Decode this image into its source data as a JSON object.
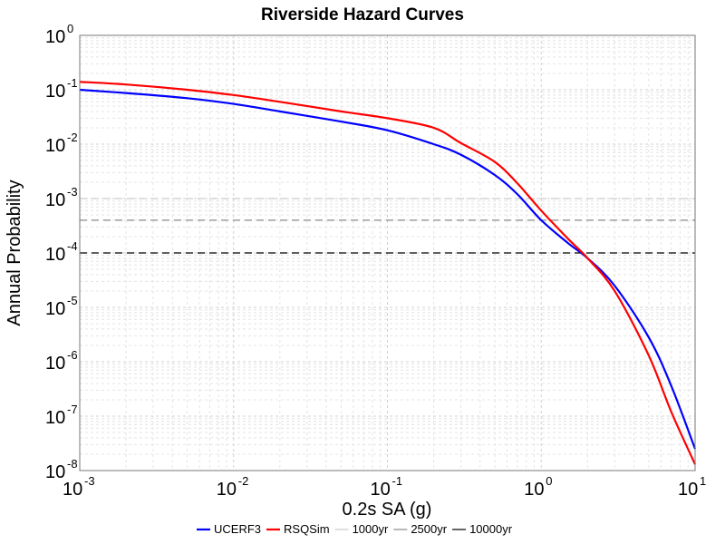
{
  "chart_data": {
    "type": "line",
    "title": "Riverside Hazard Curves",
    "xlabel": "0.2s SA (g)",
    "ylabel": "Annual Probability",
    "xscale": "log",
    "yscale": "log",
    "xlim": [
      0.001,
      10
    ],
    "ylim": [
      1e-08,
      1
    ],
    "grid": true,
    "legend_position": "bottom",
    "x_ticks": [
      {
        "base": "10",
        "exp": "-3"
      },
      {
        "base": "10",
        "exp": "-2"
      },
      {
        "base": "10",
        "exp": "-1"
      },
      {
        "base": "10",
        "exp": "0"
      },
      {
        "base": "10",
        "exp": "1"
      }
    ],
    "y_ticks": [
      {
        "base": "10",
        "exp": "0"
      },
      {
        "base": "10",
        "exp": "-1"
      },
      {
        "base": "10",
        "exp": "-2"
      },
      {
        "base": "10",
        "exp": "-3"
      },
      {
        "base": "10",
        "exp": "-4"
      },
      {
        "base": "10",
        "exp": "-5"
      },
      {
        "base": "10",
        "exp": "-6"
      },
      {
        "base": "10",
        "exp": "-7"
      },
      {
        "base": "10",
        "exp": "-8"
      }
    ],
    "series": [
      {
        "name": "UCERF3",
        "color": "#0000ff",
        "x": [
          0.001,
          0.002,
          0.005,
          0.01,
          0.02,
          0.05,
          0.1,
          0.2,
          0.3,
          0.5,
          0.7,
          1.0,
          1.5,
          2.0,
          3.0,
          5.0,
          7.0,
          10.0
        ],
        "y": [
          0.1,
          0.087,
          0.07,
          0.055,
          0.04,
          0.026,
          0.018,
          0.01,
          0.0064,
          0.0027,
          0.0012,
          0.0004,
          0.00015,
          8e-05,
          2.5e-05,
          2.8e-06,
          3.6e-07,
          2.5e-08
        ]
      },
      {
        "name": "RSQSim",
        "color": "#ff0000",
        "x": [
          0.001,
          0.002,
          0.005,
          0.01,
          0.02,
          0.05,
          0.1,
          0.2,
          0.3,
          0.5,
          0.7,
          1.0,
          1.5,
          2.0,
          3.0,
          5.0,
          7.0,
          10.0
        ],
        "y": [
          0.14,
          0.125,
          0.1,
          0.08,
          0.06,
          0.04,
          0.03,
          0.02,
          0.0105,
          0.0047,
          0.0019,
          0.0006,
          0.00018,
          8e-05,
          2e-05,
          1.3e-06,
          1.2e-07,
          1.3e-08
        ]
      }
    ],
    "reference_lines": [
      {
        "name": "1000yr",
        "y": 0.001,
        "color": "#cccccc"
      },
      {
        "name": "2500yr",
        "y": 0.0004,
        "color": "#888888"
      },
      {
        "name": "10000yr",
        "y": 0.0001,
        "color": "#000000"
      }
    ]
  }
}
